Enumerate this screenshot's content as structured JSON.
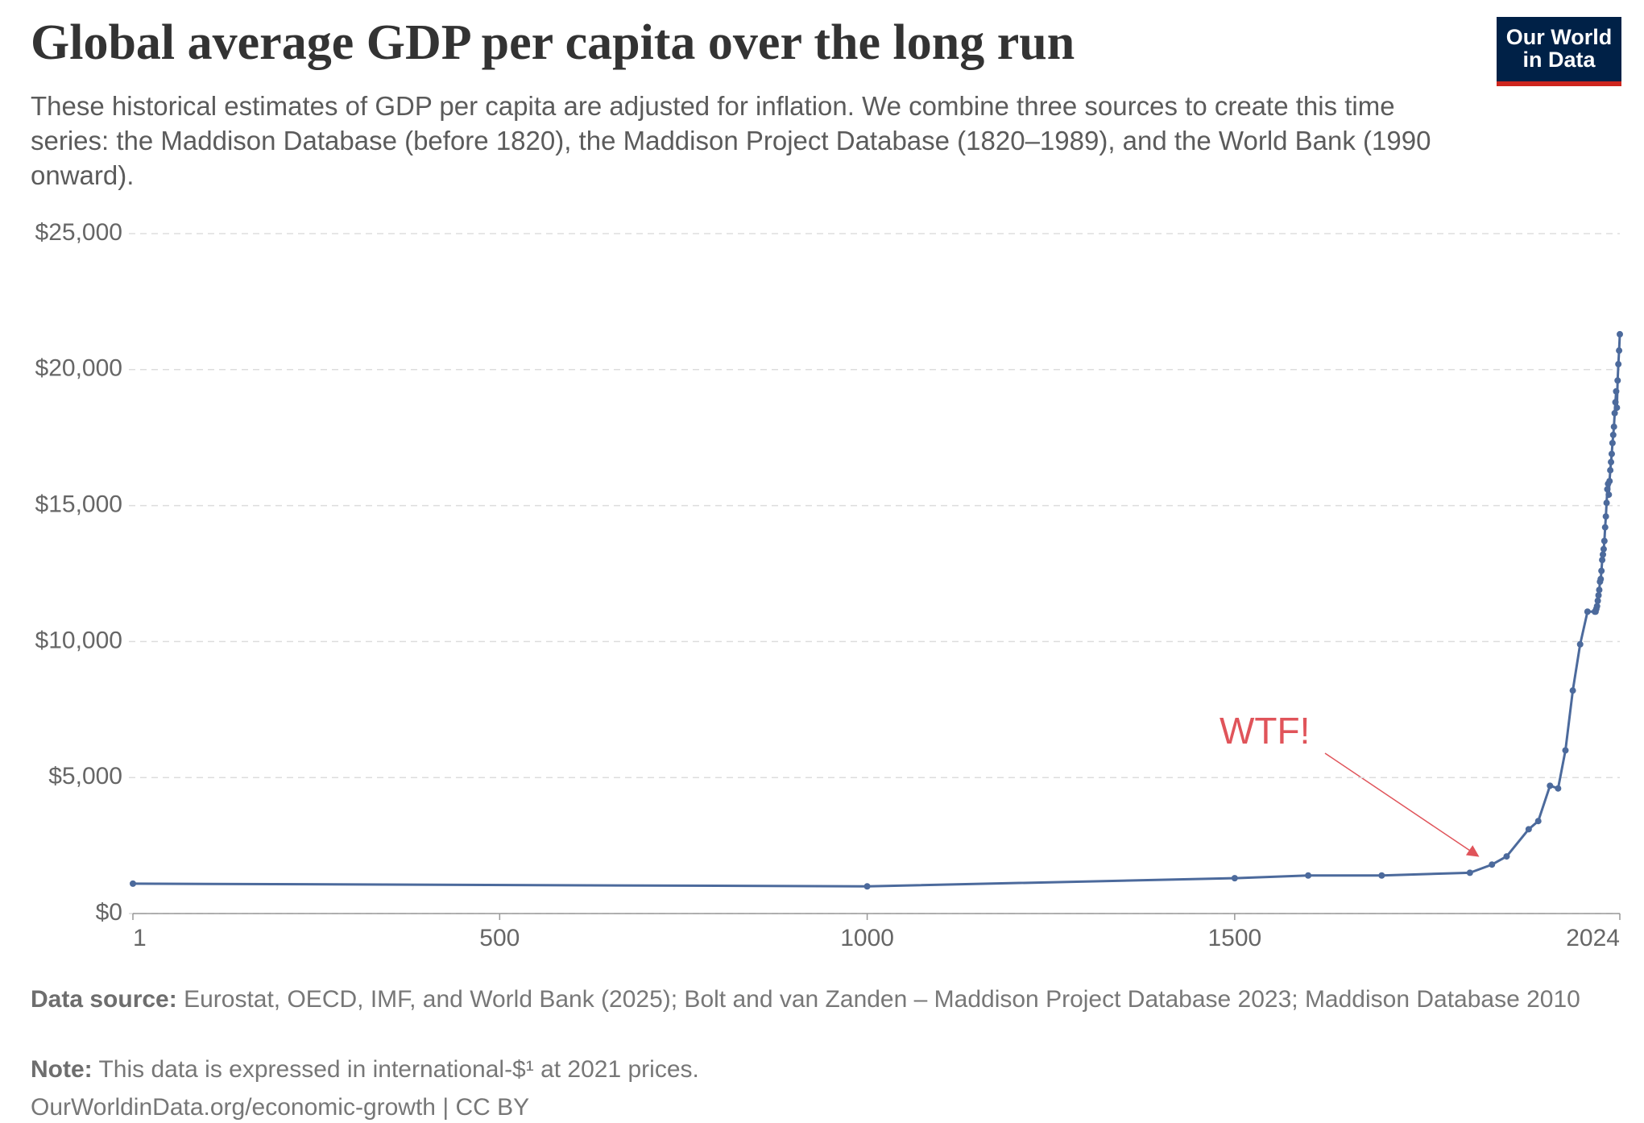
{
  "chart_data": {
    "type": "line",
    "title": "Global average GDP per capita over the long run",
    "subtitle": "These historical estimates of GDP per capita are adjusted for inflation. We combine three sources to create this time series: the Maddison Database (before 1820), the Maddison Project Database (1820–1989), and the World Bank (1990 onward).",
    "logo": [
      "Our World",
      "in Data"
    ],
    "annotation": "WTF!",
    "x": [
      1,
      1000,
      1500,
      1600,
      1700,
      1820,
      1850,
      1870,
      1900,
      1913,
      1929,
      1940,
      1950,
      1960,
      1970,
      1980,
      1990,
      1991,
      1992,
      1993,
      1994,
      1995,
      1996,
      1997,
      1998,
      1999,
      2000,
      2001,
      2002,
      2003,
      2004,
      2005,
      2006,
      2007,
      2008,
      2009,
      2010,
      2011,
      2012,
      2013,
      2014,
      2015,
      2016,
      2017,
      2018,
      2019,
      2020,
      2021,
      2022,
      2023,
      2024
    ],
    "values": [
      1100,
      1000,
      1300,
      1400,
      1400,
      1500,
      1800,
      2100,
      3100,
      3400,
      4700,
      4600,
      6000,
      8200,
      9900,
      11100,
      11100,
      11100,
      11200,
      11300,
      11500,
      11700,
      11900,
      12200,
      12300,
      12600,
      13000,
      13200,
      13400,
      13700,
      14200,
      14600,
      15100,
      15600,
      15800,
      15400,
      15900,
      16300,
      16600,
      16900,
      17300,
      17600,
      17900,
      18400,
      18800,
      19200,
      18600,
      19600,
      20200,
      20700,
      21300
    ],
    "color": "#4c6a9c",
    "xlim": [
      1,
      2024
    ],
    "xticks": [
      1,
      500,
      1000,
      1500,
      2024
    ],
    "ylim": [
      0,
      25000
    ],
    "yticks": [
      {
        "value": 0,
        "label": "$0"
      },
      {
        "value": 5000,
        "label": "$5,000"
      },
      {
        "value": 10000,
        "label": "$10,000"
      },
      {
        "value": 15000,
        "label": "$15,000"
      },
      {
        "value": 20000,
        "label": "$20,000"
      },
      {
        "value": 25000,
        "label": "$25,000"
      }
    ],
    "grid": true,
    "source_label": "Data source:",
    "source": "Eurostat, OECD, IMF, and World Bank (2025); Bolt and van Zanden – Maddison Project Database 2023; Maddison Database 2010",
    "note_label": "Note:",
    "note": "This data is expressed in international-$¹ at 2021 prices.",
    "url": "OurWorldinData.org/economic-growth | CC BY"
  }
}
